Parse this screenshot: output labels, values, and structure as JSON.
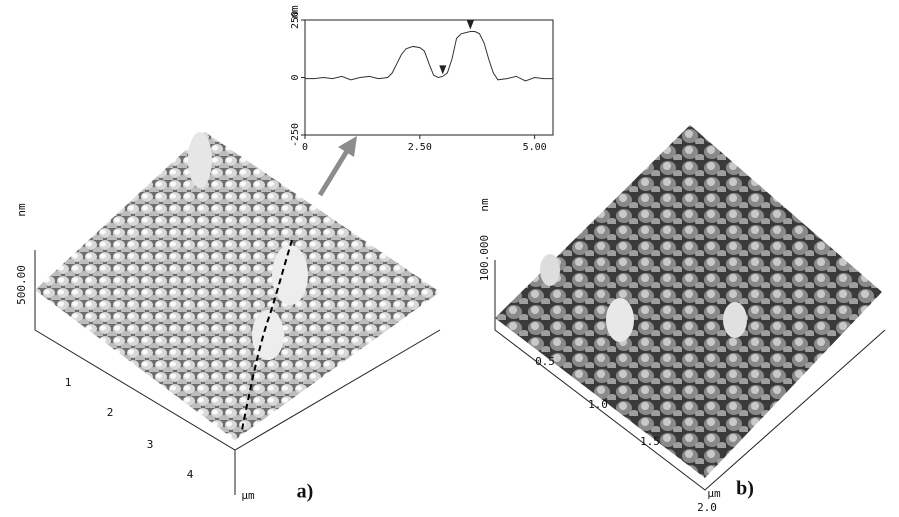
{
  "chart_data": {
    "type": "line",
    "y_unit": "nm",
    "x": [
      0,
      0.2,
      0.4,
      0.6,
      0.8,
      1.0,
      1.2,
      1.4,
      1.6,
      1.8,
      1.9,
      2.0,
      2.1,
      2.2,
      2.35,
      2.5,
      2.6,
      2.7,
      2.8,
      2.9,
      3.0,
      3.1,
      3.2,
      3.3,
      3.4,
      3.5,
      3.6,
      3.7,
      3.8,
      3.9,
      4.0,
      4.1,
      4.2,
      4.4,
      4.6,
      4.8,
      5.0,
      5.2,
      5.4
    ],
    "values": [
      -5,
      -5,
      0,
      -5,
      5,
      -10,
      0,
      5,
      -5,
      0,
      20,
      60,
      100,
      125,
      135,
      130,
      115,
      60,
      10,
      0,
      5,
      20,
      80,
      170,
      190,
      195,
      200,
      200,
      190,
      150,
      80,
      20,
      -10,
      -5,
      5,
      -15,
      0,
      -5,
      -5
    ],
    "cursors": [
      {
        "x": 3.0,
        "y": 5
      },
      {
        "x": 3.6,
        "y": 200
      }
    ],
    "xlim": [
      0,
      5.4
    ],
    "ylim": [
      -250,
      250
    ],
    "xticks": [
      0,
      {
        "value": 2.5,
        "label": "2.50"
      },
      {
        "value": 5,
        "label": "5.00"
      }
    ],
    "yticks": [
      250,
      0,
      -250
    ]
  },
  "panel_a": {
    "z_unit": "nm",
    "z_label": "500.00",
    "xy_ticks": [
      "1",
      "2",
      "3",
      "4"
    ],
    "xy_unit": "μm",
    "label": "a)"
  },
  "panel_b": {
    "z_unit": "nm",
    "z_label": "100.000",
    "xy_ticks": [
      "0.5",
      "1.0",
      "1.5",
      "2.0"
    ],
    "xy_unit": "μm",
    "label": "b)"
  }
}
